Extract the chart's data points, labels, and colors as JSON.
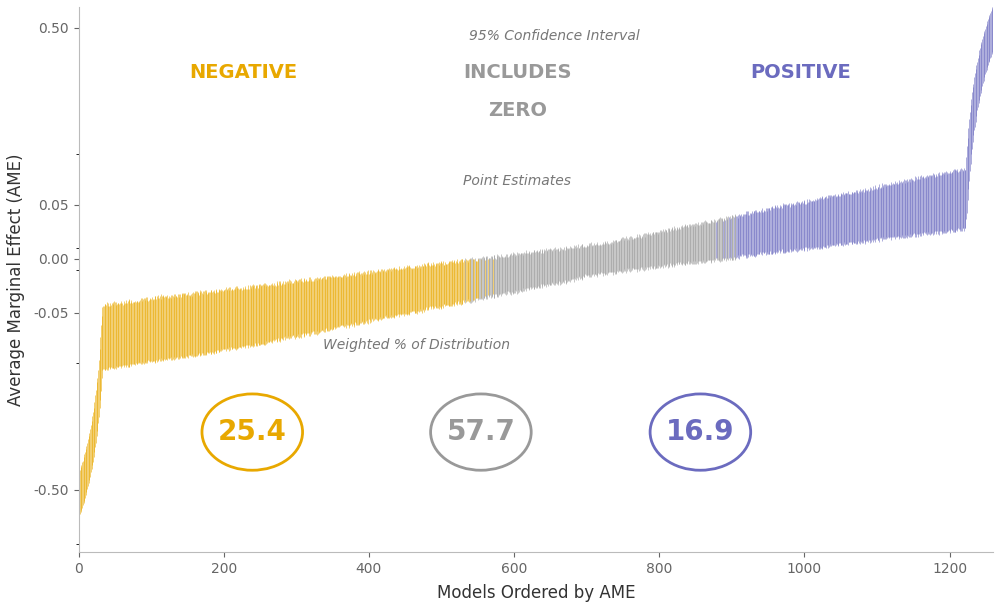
{
  "n_models": 1260,
  "negative_color": "#E8A800",
  "includes_zero_color": "#999999",
  "positive_color": "#6B6BBF",
  "background_color": "#FFFFFF",
  "ylabel": "Average Marginal Effect (AME)",
  "xlabel": "Models Ordered by AME",
  "yticks": [
    0.5,
    0.05,
    0.0,
    -0.05,
    -0.5
  ],
  "ytick_labels": [
    "0.50",
    "0.05",
    "0.00",
    "-0.05",
    "-0.50"
  ],
  "xlim": [
    0,
    1260
  ],
  "label_ci": "95% Confidence Interval",
  "label_neg": "NEGATIVE",
  "label_inc": "INCLUDES",
  "label_zero": "ZERO",
  "label_pos": "POSITIVE",
  "label_pe": "Point Estimates",
  "label_wpd": "Weighted % of Distribution",
  "pct_neg": "25.4",
  "pct_inc": "57.7",
  "pct_pos": "16.9",
  "text_fontsize": 10,
  "label_fontsize": 14,
  "pct_fontsize": 20,
  "axis_label_fontsize": 12,
  "tick_fontsize": 10,
  "linthresh": 0.065,
  "linscale": 0.35
}
